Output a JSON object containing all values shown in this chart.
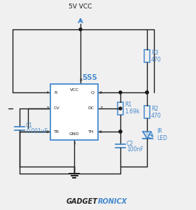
{
  "bg_color": "#f0f0f0",
  "wire_color": "#1a1a1a",
  "blue_color": "#4488cc",
  "title": "5V VCC",
  "watermark_black": "GADGET",
  "watermark_blue": "RONICX",
  "ic_label": "555",
  "r3_label": "R3",
  "r3_val": "470",
  "r1_label": "R1",
  "r1_val": "1.69k",
  "r2_label": "R2",
  "r2_val": "470",
  "c1_label": "C1",
  "c1_val": "0.001uF",
  "c2_label": "C2",
  "c2_val": "100nF",
  "ir_label": "IR",
  "ir_val": "LED",
  "lw_wire": 1.0,
  "lw_comp": 1.1
}
